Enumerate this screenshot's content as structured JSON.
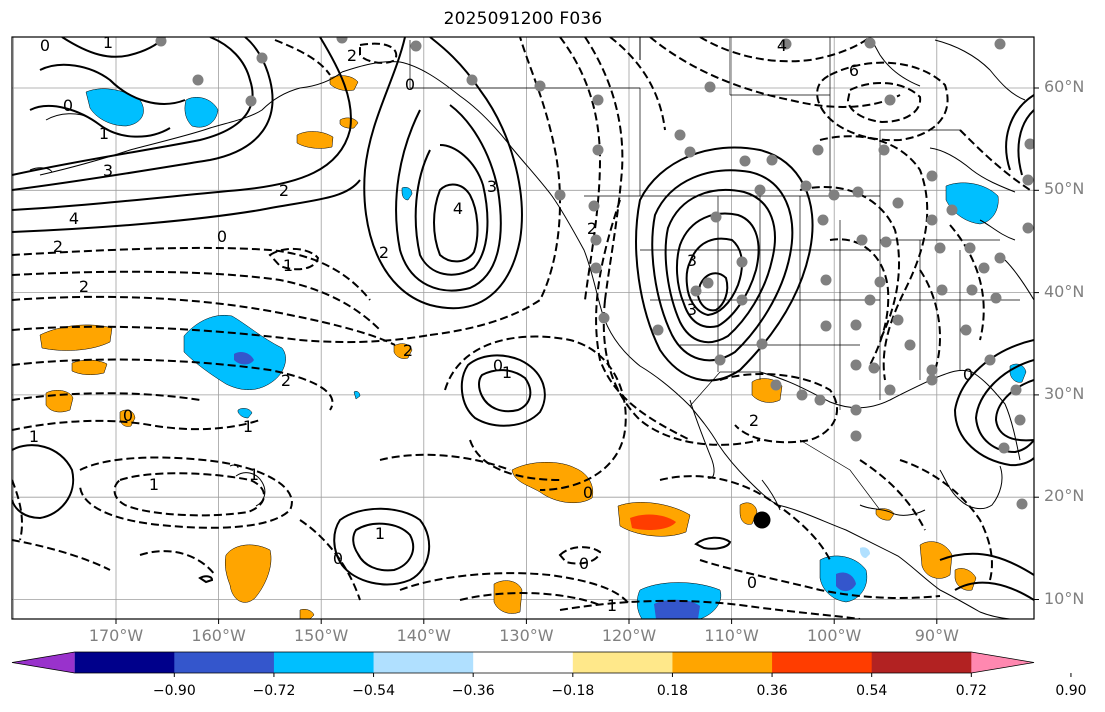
{
  "title": "2025091200 F036",
  "map": {
    "lon_labels": [
      "170°W",
      "160°W",
      "150°W",
      "140°W",
      "130°W",
      "120°W",
      "110°W",
      "100°W",
      "90°W"
    ],
    "lat_labels": [
      "60°N",
      "50°N",
      "40°N",
      "30°N",
      "20°N",
      "10°N"
    ],
    "contour_labels": [
      "0",
      "1",
      "0",
      "1",
      "3",
      "4",
      "2",
      "2",
      "2",
      "1",
      "0",
      "2",
      "3",
      "4",
      "2",
      "2",
      "0",
      "1",
      "0",
      "1",
      "1",
      "1",
      "1",
      "0",
      "0",
      "0",
      "1",
      "2",
      "3",
      "3",
      "0",
      "6",
      "4",
      "2",
      "2",
      "0",
      "1",
      "0"
    ],
    "colors": {
      "land_outline": "#000000",
      "grid": "#9e9e9e",
      "station_marker": "#808080",
      "highlight_marker": "#000000"
    }
  },
  "colorbar": {
    "colors": [
      "#9932cc",
      "#00008b",
      "#3456cc",
      "#00bfff",
      "#b0e0ff",
      "#ffffff",
      "#ffe88a",
      "#ffa500",
      "#ff3d00",
      "#b22222",
      "#ff88b0"
    ],
    "ticks": [
      "−0.90",
      "−0.72",
      "−0.54",
      "−0.36",
      "−0.18",
      "0.18",
      "0.36",
      "0.54",
      "0.72",
      "0.90"
    ]
  }
}
